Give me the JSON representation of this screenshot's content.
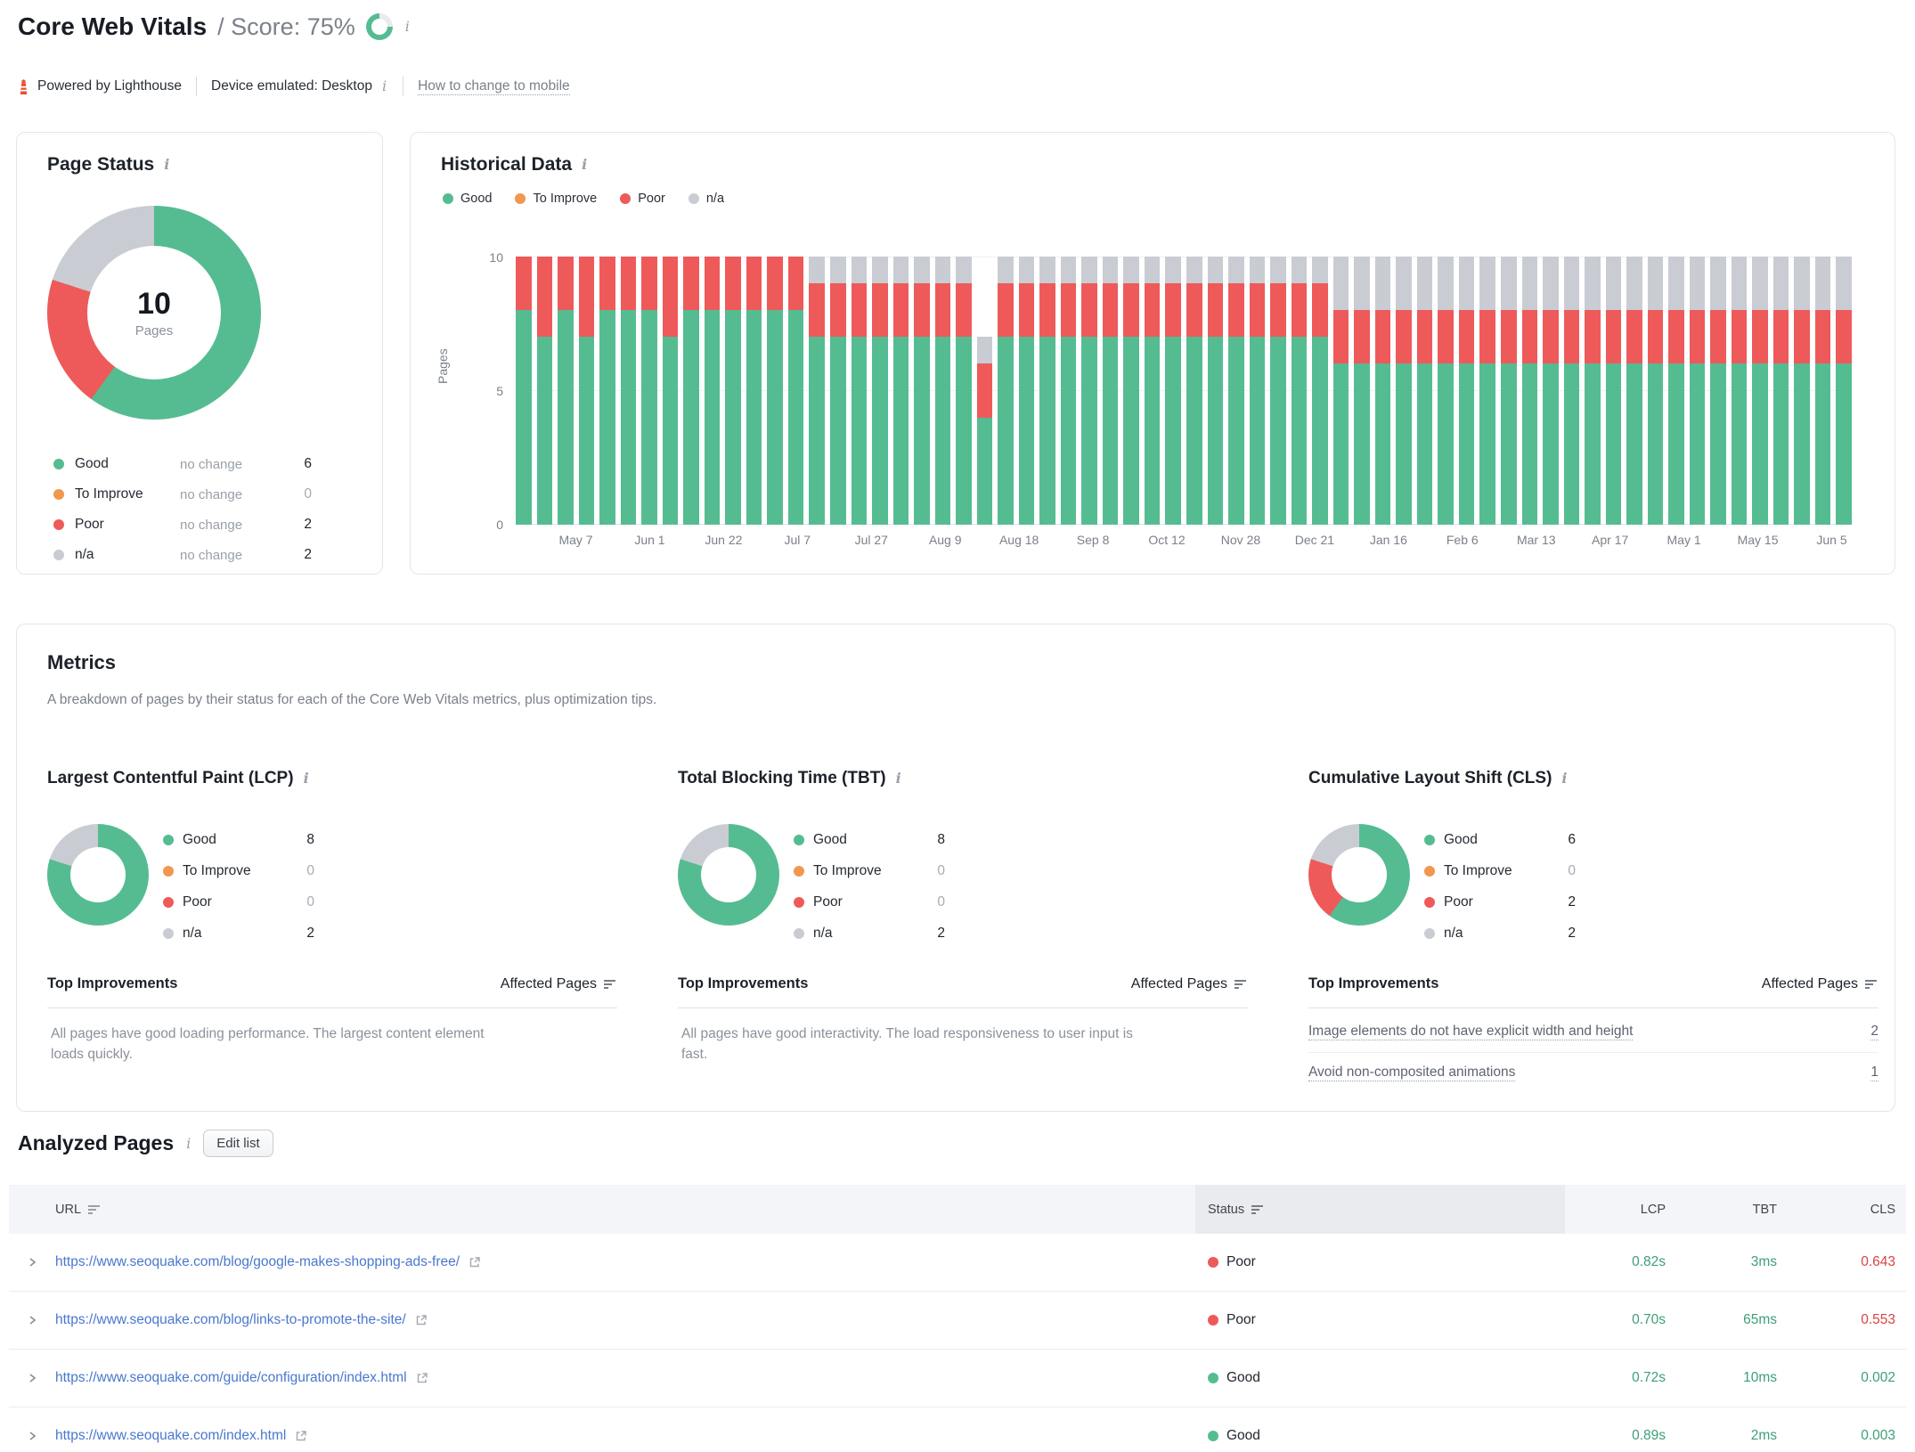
{
  "header": {
    "title": "Core Web Vitals",
    "score_label": "/ Score: 75%",
    "score_percent": 75,
    "powered_by": "Powered by Lighthouse",
    "device_label": "Device emulated: Desktop",
    "mobile_link": "How to change to mobile"
  },
  "colors": {
    "good": "#55bc92",
    "to_improve": "#f0984d",
    "poor": "#ee5a5a",
    "na": "#c9ccd3",
    "value_good": "#3f9e78",
    "value_poor": "#d94444",
    "link": "#4a77cd"
  },
  "page_status": {
    "title": "Page Status",
    "center_value": "10",
    "center_label": "Pages",
    "legend": [
      {
        "label": "Good",
        "key": "good",
        "change": "no change",
        "value": "6"
      },
      {
        "label": "To Improve",
        "key": "to_improve",
        "change": "no change",
        "value": "0"
      },
      {
        "label": "Poor",
        "key": "poor",
        "change": "no change",
        "value": "2"
      },
      {
        "label": "n/a",
        "key": "na",
        "change": "no change",
        "value": "2"
      }
    ],
    "donut": [
      {
        "key": "good",
        "pct": 60
      },
      {
        "key": "poor",
        "pct": 20
      },
      {
        "key": "na",
        "pct": 20
      }
    ]
  },
  "historical": {
    "title": "Historical Data",
    "legend": [
      {
        "label": "Good",
        "key": "good"
      },
      {
        "label": "To Improve",
        "key": "to_improve"
      },
      {
        "label": "Poor",
        "key": "poor"
      },
      {
        "label": "n/a",
        "key": "na"
      }
    ],
    "y_ticks": [
      "10",
      "5",
      "0"
    ],
    "y_axis_label": "Pages"
  },
  "metrics": {
    "title": "Metrics",
    "subtitle": "A breakdown of pages by their status for each of the Core Web Vitals metrics, plus optimization tips.",
    "top_improvements_label": "Top Improvements",
    "affected_pages_label": "Affected Pages",
    "lcp": {
      "title": "Largest Contentful Paint (LCP)",
      "legend": [
        {
          "label": "Good",
          "key": "good",
          "value": "8"
        },
        {
          "label": "To Improve",
          "key": "to_improve",
          "value": "0"
        },
        {
          "label": "Poor",
          "key": "poor",
          "value": "0"
        },
        {
          "label": "n/a",
          "key": "na",
          "value": "2"
        }
      ],
      "donut": [
        {
          "key": "good",
          "pct": 80
        },
        {
          "key": "na",
          "pct": 20
        }
      ],
      "note": "All pages have good loading performance. The largest content element loads quickly."
    },
    "tbt": {
      "title": "Total Blocking Time (TBT)",
      "legend": [
        {
          "label": "Good",
          "key": "good",
          "value": "8"
        },
        {
          "label": "To Improve",
          "key": "to_improve",
          "value": "0"
        },
        {
          "label": "Poor",
          "key": "poor",
          "value": "0"
        },
        {
          "label": "n/a",
          "key": "na",
          "value": "2"
        }
      ],
      "donut": [
        {
          "key": "good",
          "pct": 80
        },
        {
          "key": "na",
          "pct": 20
        }
      ],
      "note": "All pages have good interactivity. The load responsiveness to user input is fast."
    },
    "cls": {
      "title": "Cumulative Layout Shift (CLS)",
      "legend": [
        {
          "label": "Good",
          "key": "good",
          "value": "6"
        },
        {
          "label": "To Improve",
          "key": "to_improve",
          "value": "0"
        },
        {
          "label": "Poor",
          "key": "poor",
          "value": "2"
        },
        {
          "label": "n/a",
          "key": "na",
          "value": "2"
        }
      ],
      "donut": [
        {
          "key": "good",
          "pct": 60
        },
        {
          "key": "poor",
          "pct": 20
        },
        {
          "key": "na",
          "pct": 20
        }
      ],
      "improvements": [
        {
          "text": "Image elements do not have explicit width and height",
          "count": "2"
        },
        {
          "text": "Avoid non-composited animations",
          "count": "1"
        }
      ]
    }
  },
  "analyzed": {
    "title": "Analyzed Pages",
    "edit_button": "Edit list",
    "columns": {
      "url": "URL",
      "status": "Status",
      "lcp": "LCP",
      "tbt": "TBT",
      "cls": "CLS"
    },
    "rows": [
      {
        "url": "https://www.seoquake.com/blog/google-makes-shopping-ads-free/",
        "status": "Poor",
        "status_key": "poor",
        "lcp": "0.82s",
        "lcp_state": "good",
        "tbt": "3ms",
        "tbt_state": "good",
        "cls": "0.643",
        "cls_state": "poor"
      },
      {
        "url": "https://www.seoquake.com/blog/links-to-promote-the-site/",
        "status": "Poor",
        "status_key": "poor",
        "lcp": "0.70s",
        "lcp_state": "good",
        "tbt": "65ms",
        "tbt_state": "good",
        "cls": "0.553",
        "cls_state": "poor"
      },
      {
        "url": "https://www.seoquake.com/guide/configuration/index.html",
        "status": "Good",
        "status_key": "good",
        "lcp": "0.72s",
        "lcp_state": "good",
        "tbt": "10ms",
        "tbt_state": "good",
        "cls": "0.002",
        "cls_state": "good"
      },
      {
        "url": "https://www.seoquake.com/index.html",
        "status": "Good",
        "status_key": "good",
        "lcp": "0.89s",
        "lcp_state": "good",
        "tbt": "2ms",
        "tbt_state": "good",
        "cls": "0.003",
        "cls_state": "good"
      }
    ]
  },
  "chart_data": [
    {
      "id": "page-status-donut",
      "type": "pie",
      "title": "Page Status",
      "center_label": "10 Pages",
      "labels": [
        "Good",
        "To Improve",
        "Poor",
        "n/a"
      ],
      "values": [
        6,
        0,
        2,
        2
      ]
    },
    {
      "id": "historical",
      "type": "bar",
      "stacked": true,
      "title": "Historical Data",
      "xlabel": "",
      "ylabel": "Pages",
      "ylim": [
        0,
        10
      ],
      "y_ticks": [
        0,
        5,
        10
      ],
      "legend_position": "top-left",
      "x_tick_labels": [
        "May 7",
        "Jun 1",
        "Jun 22",
        "Jul 7",
        "Jul 27",
        "Aug 9",
        "Aug 18",
        "Sep 8",
        "Oct 12",
        "Nov 28",
        "Dec 21",
        "Jan 16",
        "Feb 6",
        "Mar 13",
        "Apr 17",
        "May 1",
        "May 15",
        "Jun 5"
      ],
      "series": [
        {
          "name": "Good",
          "values": [
            8,
            7,
            8,
            7,
            8,
            8,
            8,
            7,
            8,
            8,
            8,
            8,
            8,
            8,
            7,
            7,
            7,
            7,
            7,
            7,
            7,
            7,
            4,
            7,
            7,
            7,
            7,
            7,
            7,
            7,
            7,
            7,
            7,
            7,
            7,
            7,
            7,
            7,
            7,
            6,
            6,
            6,
            6,
            6,
            6,
            6,
            6,
            6,
            6,
            6,
            6,
            6,
            6,
            6,
            6,
            6,
            6,
            6,
            6,
            6,
            6,
            6,
            6,
            6
          ]
        },
        {
          "name": "To Improve",
          "values": [
            0,
            0,
            0,
            0,
            0,
            0,
            0,
            0,
            0,
            0,
            0,
            0,
            0,
            0,
            0,
            0,
            0,
            0,
            0,
            0,
            0,
            0,
            0,
            0,
            0,
            0,
            0,
            0,
            0,
            0,
            0,
            0,
            0,
            0,
            0,
            0,
            0,
            0,
            0,
            0,
            0,
            0,
            0,
            0,
            0,
            0,
            0,
            0,
            0,
            0,
            0,
            0,
            0,
            0,
            0,
            0,
            0,
            0,
            0,
            0,
            0,
            0,
            0,
            0
          ]
        },
        {
          "name": "Poor",
          "values": [
            2,
            3,
            2,
            3,
            2,
            2,
            2,
            3,
            2,
            2,
            2,
            2,
            2,
            2,
            2,
            2,
            2,
            2,
            2,
            2,
            2,
            2,
            2,
            2,
            2,
            2,
            2,
            2,
            2,
            2,
            2,
            2,
            2,
            2,
            2,
            2,
            2,
            2,
            2,
            2,
            2,
            2,
            2,
            2,
            2,
            2,
            2,
            2,
            2,
            2,
            2,
            2,
            2,
            2,
            2,
            2,
            2,
            2,
            2,
            2,
            2,
            2,
            2,
            2
          ]
        },
        {
          "name": "n/a",
          "values": [
            0,
            0,
            0,
            0,
            0,
            0,
            0,
            0,
            0,
            0,
            0,
            0,
            0,
            0,
            1,
            1,
            1,
            1,
            1,
            1,
            1,
            1,
            1,
            1,
            1,
            1,
            1,
            1,
            1,
            1,
            1,
            1,
            1,
            1,
            1,
            1,
            1,
            1,
            1,
            2,
            2,
            2,
            2,
            2,
            2,
            2,
            2,
            2,
            2,
            2,
            2,
            2,
            2,
            2,
            2,
            2,
            2,
            2,
            2,
            2,
            2,
            2,
            2,
            2
          ]
        }
      ]
    },
    {
      "id": "lcp-donut",
      "type": "pie",
      "title": "Largest Contentful Paint (LCP)",
      "labels": [
        "Good",
        "To Improve",
        "Poor",
        "n/a"
      ],
      "values": [
        8,
        0,
        0,
        2
      ]
    },
    {
      "id": "tbt-donut",
      "type": "pie",
      "title": "Total Blocking Time (TBT)",
      "labels": [
        "Good",
        "To Improve",
        "Poor",
        "n/a"
      ],
      "values": [
        8,
        0,
        0,
        2
      ]
    },
    {
      "id": "cls-donut",
      "type": "pie",
      "title": "Cumulative Layout Shift (CLS)",
      "labels": [
        "Good",
        "To Improve",
        "Poor",
        "n/a"
      ],
      "values": [
        6,
        0,
        2,
        2
      ]
    }
  ]
}
